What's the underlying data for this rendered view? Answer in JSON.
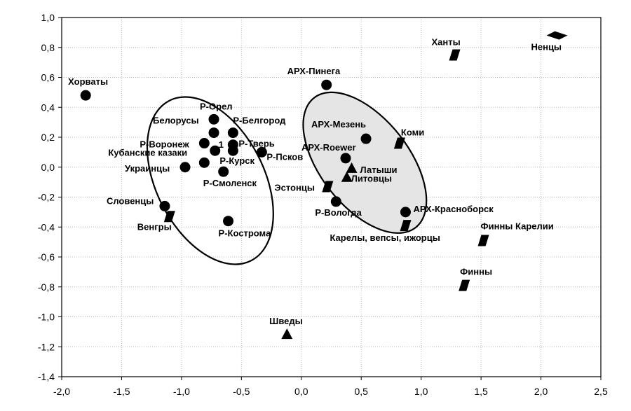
{
  "chart_data": {
    "type": "scatter",
    "xlim": [
      -2.0,
      2.5
    ],
    "ylim": [
      -1.4,
      1.0
    ],
    "x_ticks": [
      "-2,0",
      "-1,5",
      "-1,0",
      "-0,5",
      "0,0",
      "0,5",
      "1,0",
      "1,5",
      "2,0",
      "2,5"
    ],
    "y_ticks": [
      "1,0",
      "0,8",
      "0,6",
      "0,4",
      "0,2",
      "0,0",
      "-0,2",
      "-0,4",
      "-0,6",
      "-0,8",
      "-1,0",
      "-1,2",
      "-1,4"
    ],
    "grid": true,
    "points": [
      {
        "label": "Хорваты",
        "x": -1.8,
        "y": 0.48,
        "shape": "circle"
      },
      {
        "label": "Р-Орел",
        "x": -0.73,
        "y": 0.32,
        "shape": "circle"
      },
      {
        "label": "Р-Белгород",
        "x": -0.57,
        "y": 0.23,
        "shape": "circle"
      },
      {
        "label": "Белорусы",
        "x": -0.73,
        "y": 0.23,
        "shape": "circle"
      },
      {
        "label": "Р-Воронеж",
        "x": -0.81,
        "y": 0.16,
        "shape": "circle"
      },
      {
        "label": "1",
        "x": -0.72,
        "y": 0.11,
        "shape": "circle"
      },
      {
        "label": "Р-Тверь",
        "x": -0.57,
        "y": 0.15,
        "shape": "circle"
      },
      {
        "label": "Р-Курск",
        "x": -0.57,
        "y": 0.11,
        "shape": "circle"
      },
      {
        "label": "Р-Псков",
        "x": -0.33,
        "y": 0.1,
        "shape": "circle"
      },
      {
        "label": "Кубанские казаки",
        "x": -0.81,
        "y": 0.03,
        "shape": "circle"
      },
      {
        "label": "Украинцы",
        "x": -0.97,
        "y": 0.0,
        "shape": "circle"
      },
      {
        "label": "Р-Смоленск",
        "x": -0.65,
        "y": -0.03,
        "shape": "circle"
      },
      {
        "label": "Словенцы",
        "x": -1.14,
        "y": -0.26,
        "shape": "circle"
      },
      {
        "label": "Венгры",
        "x": -1.1,
        "y": -0.33,
        "shape": "parallelogram"
      },
      {
        "label": "Р-Кострома",
        "x": -0.61,
        "y": -0.36,
        "shape": "circle"
      },
      {
        "label": "Шведы",
        "x": -0.12,
        "y": -1.12,
        "shape": "triangle"
      },
      {
        "label": "АРХ-Пинега",
        "x": 0.21,
        "y": 0.55,
        "shape": "circle"
      },
      {
        "label": "АРХ-Мезень",
        "x": 0.54,
        "y": 0.19,
        "shape": "circle"
      },
      {
        "label": "АРХ-Roewer",
        "x": 0.37,
        "y": 0.06,
        "shape": "circle"
      },
      {
        "label": "Латыши",
        "x": 0.42,
        "y": -0.01,
        "shape": "triangle"
      },
      {
        "label": "Литовцы",
        "x": 0.38,
        "y": -0.07,
        "shape": "triangle"
      },
      {
        "label": "Эстонцы",
        "x": 0.22,
        "y": -0.13,
        "shape": "parallelogram"
      },
      {
        "label": "Р-Вологда",
        "x": 0.29,
        "y": -0.23,
        "shape": "circle"
      },
      {
        "label": "АРХ-Красноборск",
        "x": 0.87,
        "y": -0.3,
        "shape": "circle"
      },
      {
        "label": "Коми",
        "x": 0.82,
        "y": 0.16,
        "shape": "parallelogram"
      },
      {
        "label": "Карелы, вепсы, ижорцы",
        "x": 0.87,
        "y": -0.39,
        "shape": "parallelogram"
      },
      {
        "label": "Ханты",
        "x": 1.28,
        "y": 0.75,
        "shape": "parallelogram"
      },
      {
        "label": "Ненцы",
        "x": 2.14,
        "y": 0.88,
        "shape": "diamond"
      },
      {
        "label": "Финны Карелии",
        "x": 1.52,
        "y": -0.49,
        "shape": "parallelogram"
      },
      {
        "label": "Финны",
        "x": 1.36,
        "y": -0.79,
        "shape": "parallelogram"
      }
    ],
    "ellipses": [
      {
        "name": "left-cluster",
        "cx": -0.76,
        "cy": -0.09,
        "rx": 0.45,
        "ry": 0.6,
        "angle_deg": -27,
        "fill": "none"
      },
      {
        "name": "right-cluster",
        "cx": 0.53,
        "cy": 0.03,
        "rx": 0.37,
        "ry": 0.55,
        "angle_deg": -38,
        "fill": "#e5e5e5"
      }
    ]
  }
}
